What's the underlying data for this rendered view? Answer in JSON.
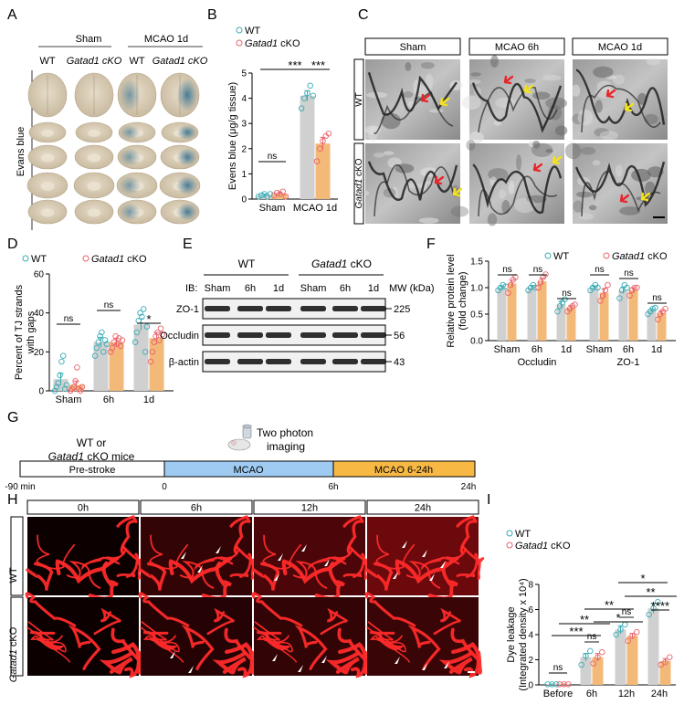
{
  "panels": {
    "A": {
      "letter": "A",
      "groups": [
        "Sham",
        "MCAO 1d"
      ],
      "cols": [
        "WT",
        "Gatad1 cKO",
        "WT",
        "Gatad1 cKO"
      ],
      "ylabel": "Evans blue"
    },
    "C": {
      "letter": "C",
      "cols": [
        "Sham",
        "MCAO 6h",
        "MCAO 1d"
      ],
      "rows": [
        "WT",
        "Gatad1 cKO"
      ]
    },
    "E": {
      "letter": "E",
      "ib": "IB:",
      "groups": [
        "WT",
        "Gatad1 cKO"
      ],
      "lanes": [
        "Sham",
        "6h",
        "1d",
        "Sham",
        "6h",
        "1d"
      ],
      "mw_label": "MW (kDa)",
      "bands": [
        {
          "name": "ZO-1",
          "mw": "225"
        },
        {
          "name": "Occludin",
          "mw": "56"
        },
        {
          "name": "β-actin",
          "mw": "43"
        }
      ]
    },
    "G": {
      "letter": "G",
      "mice": [
        "WT or",
        "Gatad1 cKO mice"
      ],
      "imaging": [
        "Two photon",
        "imaging"
      ],
      "phases": [
        "Pre-stroke",
        "MCAO",
        "MCAO 6-24h"
      ],
      "times": [
        "-90 min",
        "0",
        "6h",
        "24h"
      ]
    },
    "H": {
      "letter": "H",
      "cols": [
        "0h",
        "6h",
        "12h",
        "24h"
      ],
      "rows": [
        "WT",
        "Gatad1 cKO"
      ]
    }
  },
  "chart_data": [
    {
      "panel": "B",
      "type": "bar",
      "legend": [
        "WT",
        "Gatad1 cKO"
      ],
      "ylabel": "Evens blue (μg/g tissue)",
      "ylim": [
        0,
        5
      ],
      "yticks": [
        "0",
        "1",
        "2",
        "3",
        "4",
        "5"
      ],
      "categories": [
        "Sham",
        "MCAO 1d"
      ],
      "series": [
        {
          "name": "WT",
          "values": [
            0.15,
            4.1
          ],
          "err": [
            0.05,
            0.2
          ],
          "points": [
            [
              0.1,
              0.15,
              0.2,
              0.1,
              0.2
            ],
            [
              3.6,
              4.0,
              4.2,
              4.5,
              4.1
            ]
          ]
        },
        {
          "name": "Gatad1 cKO",
          "values": [
            0.2,
            2.2
          ],
          "err": [
            0.05,
            0.25
          ],
          "points": [
            [
              0.15,
              0.25,
              0.2,
              0.3,
              0.1
            ],
            [
              1.5,
              2.0,
              2.3,
              2.5,
              2.6
            ]
          ]
        }
      ],
      "annotations": [
        "ns",
        "***",
        "***"
      ]
    },
    {
      "panel": "D",
      "type": "bar",
      "legend": [
        "WT",
        "Gatad1 cKO"
      ],
      "ylabel": "Percent of TJ strands with gaps",
      "ylim": [
        0,
        60
      ],
      "yticks": [
        "0",
        "20",
        "40",
        "60"
      ],
      "categories": [
        "Sham",
        "6h",
        "1d"
      ],
      "series": [
        {
          "name": "WT",
          "values": [
            6,
            25,
            34
          ],
          "err": [
            3,
            2.5,
            3
          ],
          "points": [
            [
              0,
              2,
              4,
              8,
              15,
              18,
              1,
              3
            ],
            [
              18,
              22,
              25,
              28,
              30,
              20,
              26,
              24
            ],
            [
              25,
              30,
              36,
              40,
              38,
              42,
              20,
              33
            ]
          ]
        },
        {
          "name": "Gatad1 cKO",
          "values": [
            3,
            25,
            27
          ],
          "err": [
            2,
            2,
            3
          ],
          "points": [
            [
              0,
              1,
              2,
              5,
              12,
              1,
              0,
              2
            ],
            [
              20,
              22,
              25,
              28,
              24,
              27,
              23,
              26
            ],
            [
              15,
              20,
              25,
              28,
              30,
              26,
              32,
              29
            ]
          ]
        }
      ],
      "annotations": [
        "ns",
        "ns",
        "*"
      ]
    },
    {
      "panel": "F",
      "type": "bar",
      "legend": [
        "WT",
        "Gatad1 cKO"
      ],
      "ylabel": "Relative protein level (fold change)",
      "ylim": [
        0,
        1.5
      ],
      "yticks": [
        "0.0",
        "0.5",
        "1.0",
        "1.5"
      ],
      "categories": [
        "Sham",
        "6h",
        "1d",
        "Sham",
        "6h",
        "1d"
      ],
      "groups": [
        "Occludin",
        "ZO-1"
      ],
      "series": [
        {
          "name": "WT",
          "values": [
            1.0,
            1.0,
            0.68,
            1.0,
            0.95,
            0.57
          ],
          "err": [
            0.03,
            0.04,
            0.06,
            0.03,
            0.06,
            0.03
          ],
          "points": [
            [
              0.95,
              1.0,
              1.05,
              1.02
            ],
            [
              0.95,
              1.0,
              1.05,
              1.0
            ],
            [
              0.55,
              0.65,
              0.72,
              0.78
            ],
            [
              0.95,
              1.0,
              1.05,
              1.0
            ],
            [
              0.8,
              0.95,
              1.05,
              1.0
            ],
            [
              0.5,
              0.55,
              0.6,
              0.62
            ]
          ]
        },
        {
          "name": "Gatad1 cKO",
          "values": [
            1.08,
            1.12,
            0.62,
            0.9,
            0.95,
            0.52
          ],
          "err": [
            0.06,
            0.06,
            0.04,
            0.08,
            0.05,
            0.04
          ],
          "points": [
            [
              0.9,
              1.05,
              1.15,
              1.2
            ],
            [
              1.0,
              1.1,
              1.2,
              1.25
            ],
            [
              0.55,
              0.6,
              0.65,
              0.68
            ],
            [
              0.75,
              0.85,
              0.95,
              1.05
            ],
            [
              0.85,
              0.95,
              1.0,
              1.0
            ],
            [
              0.4,
              0.5,
              0.55,
              0.6
            ]
          ]
        }
      ],
      "annotations": [
        "ns",
        "ns",
        "ns",
        "ns",
        "ns",
        "ns"
      ]
    },
    {
      "panel": "I",
      "type": "bar",
      "legend": [
        "WT",
        "Gatad1 cKO"
      ],
      "ylabel": "Dye leakage (Integrated density x 10⁴)",
      "ylim": [
        0,
        8
      ],
      "yticks": [
        "0",
        "2",
        "4",
        "6",
        "8"
      ],
      "categories": [
        "Before",
        "6h",
        "12h",
        "24h"
      ],
      "series": [
        {
          "name": "WT",
          "values": [
            0.05,
            2.2,
            4.4,
            6.1
          ],
          "err": [
            0.02,
            0.3,
            0.3,
            0.4
          ],
          "points": [
            [
              0.05,
              0.05,
              0.05
            ],
            [
              1.6,
              2.3,
              2.7
            ],
            [
              4.0,
              4.4,
              4.8
            ],
            [
              5.6,
              6.1,
              6.6
            ]
          ]
        },
        {
          "name": "Gatad1 cKO",
          "values": [
            0.05,
            2.2,
            3.9,
            1.9
          ],
          "err": [
            0.02,
            0.3,
            0.2,
            0.2
          ],
          "points": [
            [
              0.05,
              0.05,
              0.05
            ],
            [
              1.7,
              2.2,
              2.6
            ],
            [
              3.5,
              3.9,
              4.2
            ],
            [
              1.6,
              1.8,
              2.2
            ]
          ]
        }
      ],
      "annotations": [
        "ns",
        "***",
        "**",
        "ns",
        "**",
        "*",
        "ns",
        "*",
        "**",
        "****"
      ]
    }
  ],
  "colors": {
    "wt_bar": "#d0d0d0",
    "wt_dot": "#3aacb6",
    "ko_bar": "#f3b979",
    "ko_dot": "#e8636b",
    "g_blue": "#9fcbf2",
    "g_orange": "#f7b944"
  }
}
